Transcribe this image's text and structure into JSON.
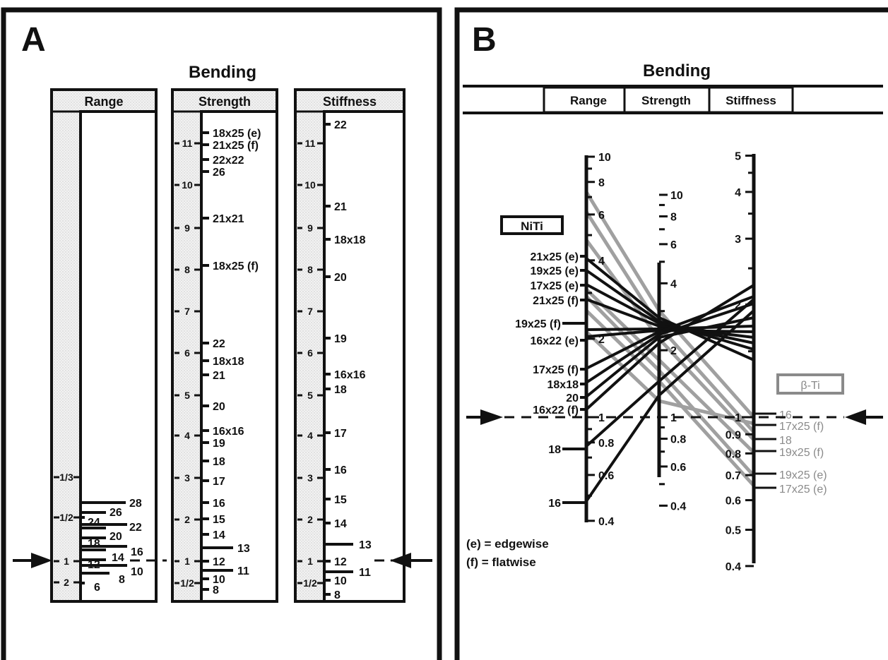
{
  "panelA": {
    "letter": "A",
    "title": "Bending",
    "headers": [
      "Range",
      "Strength",
      "Stiffness"
    ],
    "range": {
      "left_ticks": [
        "1/3",
        "1/2",
        "1",
        "2"
      ],
      "wires": [
        "28",
        "26",
        "24",
        "22",
        "20",
        "18",
        "16",
        "14",
        "12",
        "10",
        "8",
        "6"
      ]
    },
    "strength": {
      "left_ticks": [
        "11",
        "10",
        "9",
        "8",
        "7",
        "6",
        "5",
        "4",
        "3",
        "2",
        "1",
        "1/2"
      ],
      "wires": [
        "18x25 (e)",
        "21x25 (f)",
        "22x22",
        "26",
        "21x21",
        "18x25 (f)",
        "22",
        "18x18",
        "21",
        "20",
        "16x16",
        "19",
        "18",
        "17",
        "16",
        "15",
        "14",
        "13",
        "12",
        "11",
        "10",
        "8"
      ]
    },
    "stiffness": {
      "left_ticks": [
        "11",
        "10",
        "9",
        "8",
        "7",
        "6",
        "5",
        "4",
        "3",
        "2",
        "1",
        "1/2"
      ],
      "wires": [
        "22",
        "21",
        "18x18",
        "20",
        "19",
        "16x16",
        "18",
        "17",
        "16",
        "15",
        "14",
        "13",
        "12",
        "11",
        "10",
        "8"
      ]
    }
  },
  "panelB": {
    "letter": "B",
    "title": "Bending",
    "headers": [
      "Range",
      "Strength",
      "Stiffness"
    ],
    "niti_label": "NiTi",
    "beta_label": "β-Ti",
    "legend_e": "(e) = edgewise",
    "legend_f": "(f) = flatwise",
    "range_ticks": [
      "10",
      "8",
      "6",
      "4",
      "2",
      "1",
      "0.8",
      "0.6",
      "0.4"
    ],
    "strength_ticks": [
      "10",
      "8",
      "6",
      "4",
      "2",
      "1",
      "0.8",
      "0.6",
      "0.4"
    ],
    "stiffness_ticks": [
      "5",
      "4",
      "3",
      "2",
      "1",
      "0.9",
      "0.8",
      "0.7",
      "0.6",
      "0.5",
      "0.4"
    ],
    "niti_wires": [
      "21x25 (e)",
      "19x25 (e)",
      "17x25 (e)",
      "21x25 (f)",
      "19x25 (f)",
      "16x22 (e)",
      "17x25 (f)",
      "18x18",
      "20",
      "16x22 (f)",
      "18",
      "16"
    ],
    "beta_wires": [
      "16",
      "17x25 (f)",
      "18",
      "19x25 (f)",
      "19x25 (e)",
      "17x25 (e)"
    ]
  },
  "colors": {
    "ink": "#111111",
    "gray": "#8a8a8a",
    "stipple": "#e4e4e4"
  }
}
